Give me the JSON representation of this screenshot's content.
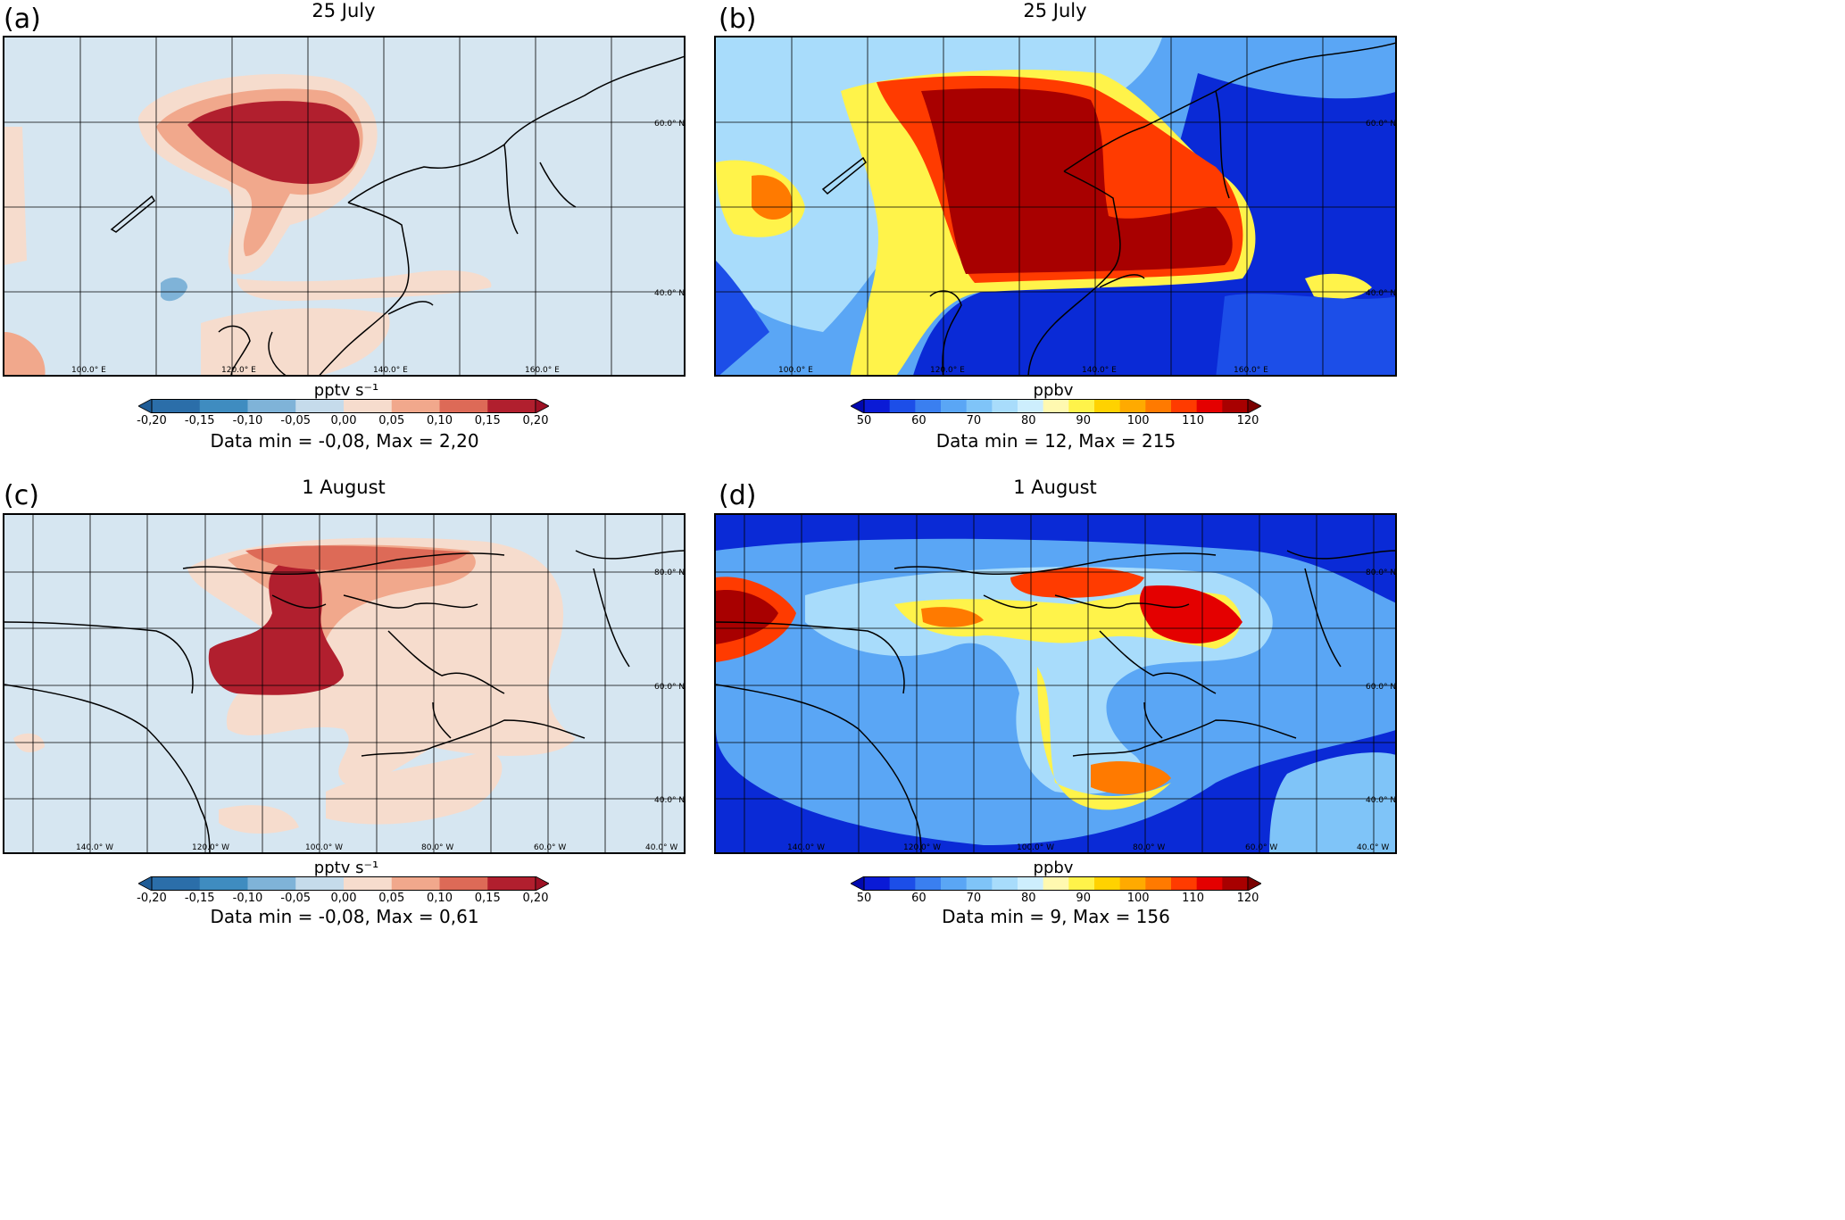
{
  "panels": [
    {
      "label": "(a)",
      "title": "25 July",
      "background": "#d6e6f1",
      "lat_labels": [
        "60.0° N",
        "40.0° N"
      ],
      "lon_labels": [
        "100.0° E",
        "120.0° E",
        "140.0° E",
        "160.0° E"
      ],
      "colorbar": {
        "unit": "pptv s⁻¹",
        "ticks": [
          "-0,20",
          "-0,15",
          "-0,10",
          "-0,05",
          "0,00",
          "0,05",
          "0,10",
          "0,15",
          "0,20"
        ],
        "colors": [
          "#2b6ea9",
          "#3f8cc0",
          "#7fb3d8",
          "#c5dbeb",
          "#f6dccd",
          "#f1a88c",
          "#dd6a57",
          "#b11f2e"
        ],
        "under": "#1f5c96",
        "over": "#9e1124"
      },
      "data_minmax": "Data min = -0,08, Max = 2,20"
    },
    {
      "label": "(b)",
      "title": "25 July",
      "background": "#0a2ad6",
      "lat_labels": [
        "60.0° N",
        "40.0° N"
      ],
      "lon_labels": [
        "100.0° E",
        "120.0° E",
        "140.0° E",
        "160.0° E"
      ],
      "colorbar": {
        "unit": "ppbv",
        "ticks": [
          "50",
          "60",
          "70",
          "80",
          "90",
          "100",
          "110",
          "120"
        ],
        "colors": [
          "#0a1ad6",
          "#1c4ee8",
          "#3a7ff0",
          "#5aa6f5",
          "#7fc4f8",
          "#a8dcfb",
          "#cdeefd",
          "#fff9b0",
          "#fff34a",
          "#ffd200",
          "#ffaa00",
          "#ff7a00",
          "#ff3b00",
          "#e40000",
          "#a80000"
        ],
        "under": "#0008b0",
        "over": "#7a0000"
      },
      "data_minmax": "Data min = 12, Max = 215"
    },
    {
      "label": "(c)",
      "title": "1 August",
      "background": "#d6e6f1",
      "lat_labels": [
        "80.0° N",
        "60.0° N",
        "40.0° N"
      ],
      "lon_labels": [
        "140.0° W",
        "120.0° W",
        "100.0° W",
        "80.0° W",
        "60.0° W",
        "40.0° W"
      ],
      "colorbar": {
        "unit": "pptv s⁻¹",
        "ticks": [
          "-0,20",
          "-0,15",
          "-0,10",
          "-0,05",
          "0,00",
          "0,05",
          "0,10",
          "0,15",
          "0,20"
        ],
        "colors": [
          "#2b6ea9",
          "#3f8cc0",
          "#7fb3d8",
          "#c5dbeb",
          "#f6dccd",
          "#f1a88c",
          "#dd6a57",
          "#b11f2e"
        ],
        "under": "#1f5c96",
        "over": "#9e1124"
      },
      "data_minmax": "Data min = -0,08, Max = 0,61"
    },
    {
      "label": "(d)",
      "title": "1 August",
      "background": "#0a2ad6",
      "lat_labels": [
        "80.0° N",
        "60.0° N",
        "40.0° N"
      ],
      "lon_labels": [
        "140.0° W",
        "120.0° W",
        "100.0° W",
        "80.0° W",
        "60.0° W",
        "40.0° W"
      ],
      "colorbar": {
        "unit": "ppbv",
        "ticks": [
          "50",
          "60",
          "70",
          "80",
          "90",
          "100",
          "110",
          "120"
        ],
        "colors": [
          "#0a1ad6",
          "#1c4ee8",
          "#3a7ff0",
          "#5aa6f5",
          "#7fc4f8",
          "#a8dcfb",
          "#cdeefd",
          "#fff9b0",
          "#fff34a",
          "#ffd200",
          "#ffaa00",
          "#ff7a00",
          "#ff3b00",
          "#e40000",
          "#a80000"
        ],
        "under": "#0008b0",
        "over": "#7a0000"
      },
      "data_minmax": "Data min = 9, Max = 156"
    }
  ]
}
